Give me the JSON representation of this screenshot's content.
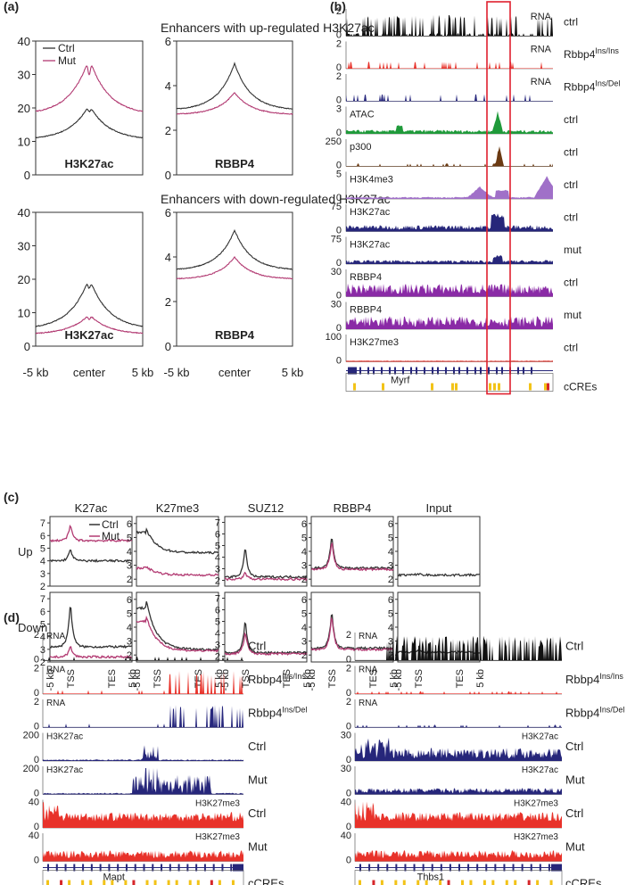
{
  "panels": {
    "a": "(a)",
    "b": "(b)",
    "c": "(c)",
    "d": "(d)"
  },
  "colors": {
    "ctrl": "#333333",
    "mut": "#b23a72",
    "rna_ctrl": "#111111",
    "rna_ins": "#e8322a",
    "rna_del": "#27277d",
    "atac": "#1f9a3a",
    "p300": "#6b3a12",
    "h3k4me3": "#a070c8",
    "h3k27ac": "#26267a",
    "rbbp4": "#8a2aa6",
    "h3k27me3": "#e8322a",
    "ccre_yellow": "#f2c318",
    "ccre_red": "#d6262a",
    "highlight": "#e0202e"
  },
  "chart_data": [
    {
      "id": "a-up",
      "type": "line",
      "title": "Enhancers with up-regulated H3K27ac",
      "legend": [
        "Ctrl",
        "Mut"
      ],
      "subplots": [
        {
          "label": "H3K27ac",
          "ylim": [
            0,
            40
          ],
          "yticks": [
            "0",
            "10",
            "20",
            "30",
            "40"
          ],
          "series": [
            {
              "name": "Ctrl",
              "baseline": 10.5,
              "peak": 21,
              "dip": 2
            },
            {
              "name": "Mut",
              "baseline": 18,
              "peak": 35,
              "dip": 5
            }
          ]
        },
        {
          "label": "RBBP4",
          "ylim": [
            0,
            6
          ],
          "yticks": [
            "0",
            "2",
            "4",
            "6"
          ],
          "series": [
            {
              "name": "Ctrl",
              "baseline": 2.9,
              "peak": 5.0
            },
            {
              "name": "Mut",
              "baseline": 2.7,
              "peak": 3.7
            }
          ]
        }
      ],
      "xticks": [
        "-5 kb",
        "center",
        "5 kb"
      ]
    },
    {
      "id": "a-down",
      "type": "line",
      "title": "Enhancers with down-regulated H3K27ac",
      "subplots": [
        {
          "label": "H3K27ac",
          "ylim": [
            0,
            40
          ],
          "yticks": [
            "0",
            "10",
            "20",
            "30",
            "40"
          ],
          "series": [
            {
              "name": "Ctrl",
              "baseline": 5,
              "peak": 20.5,
              "dip": 3
            },
            {
              "name": "Mut",
              "baseline": 3.5,
              "peak": 9.5,
              "dip": 1.5
            }
          ]
        },
        {
          "label": "RBBP4",
          "ylim": [
            0,
            6
          ],
          "yticks": [
            "0",
            "2",
            "4",
            "6"
          ],
          "series": [
            {
              "name": "Ctrl",
              "baseline": 3.4,
              "peak": 5.2
            },
            {
              "name": "Mut",
              "baseline": 3.0,
              "peak": 4.0
            }
          ]
        }
      ],
      "xticks": [
        "-5 kb",
        "center",
        "5 kb"
      ]
    },
    {
      "id": "b",
      "type": "area",
      "gene": "Myrf",
      "tracks": [
        {
          "label": "RNA",
          "max": "2",
          "sample": "ctrl",
          "color": "rna_ctrl"
        },
        {
          "label": "RNA",
          "max": "2",
          "sample": "Rbbp4",
          "sup": "Ins/Ins",
          "color": "rna_ins"
        },
        {
          "label": "RNA",
          "max": "2",
          "sample": "Rbbp4",
          "sup": "Ins/Del",
          "color": "rna_del"
        },
        {
          "label": "ATAC",
          "max": "3",
          "sample": "ctrl",
          "color": "atac"
        },
        {
          "label": "p300",
          "max": "250",
          "sample": "ctrl",
          "color": "p300"
        },
        {
          "label": "H3K4me3",
          "max": "5",
          "sample": "ctrl",
          "color": "h3k4me3"
        },
        {
          "label": "H3K27ac",
          "max": "75",
          "sample": "ctrl",
          "color": "h3k27ac"
        },
        {
          "label": "H3K27ac",
          "max": "75",
          "sample": "mut",
          "color": "h3k27ac"
        },
        {
          "label": "RBBP4",
          "max": "30",
          "sample": "ctrl",
          "color": "rbbp4"
        },
        {
          "label": "RBBP4",
          "max": "30",
          "sample": "mut",
          "color": "rbbp4"
        },
        {
          "label": "H3K27me3",
          "max": "100",
          "sample": "ctrl",
          "color": "h3k27me3"
        }
      ],
      "min": "0",
      "ccre_label": "cCREs"
    },
    {
      "id": "c",
      "type": "line",
      "legend": [
        "Ctrl",
        "Mut"
      ],
      "columns": [
        "K27ac",
        "K27me3",
        "SUZ12",
        "RBBP4",
        "Input"
      ],
      "rows": [
        "Up",
        "Down"
      ],
      "xticks": [
        "-5 kb",
        "TSS",
        "TES",
        "5 kb"
      ],
      "yticks": [
        [
          "2",
          "3",
          "4",
          "5",
          "6",
          "7"
        ],
        [
          "2",
          "3",
          "4",
          "5",
          "6"
        ],
        [
          "2",
          "3",
          "4",
          "5",
          "6",
          "7"
        ],
        [
          "2",
          "3",
          "4",
          "5",
          "6"
        ],
        [
          "2",
          "3",
          "4",
          "5",
          "6"
        ]
      ],
      "series_summary": {
        "Up": {
          "K27ac": {
            "Ctrl": {
              "base": 4.0,
              "peak": 5.0
            },
            "Mut": {
              "base": 5.6,
              "peak": 6.9
            }
          },
          "K27me3": {
            "Ctrl": {
              "base": 3.9,
              "peak": 5.6
            },
            "Mut": {
              "base": 2.3,
              "peak": 2.9
            }
          },
          "SUZ12": {
            "Ctrl": {
              "base": 2.3,
              "peak": 5.0
            },
            "Mut": {
              "base": 2.1,
              "peak": 2.7
            }
          },
          "RBBP4": {
            "Ctrl": {
              "base": 2.8,
              "peak": 5.2
            },
            "Mut": {
              "base": 2.7,
              "peak": 4.9
            }
          },
          "Input": {
            "Ctrl": {
              "base": 2.3,
              "peak": 2.4
            }
          }
        },
        "Down": {
          "K27ac": {
            "Ctrl": {
              "base": 3.2,
              "peak": 6.9
            },
            "Mut": {
              "base": 2.4,
              "peak": 3.3
            }
          },
          "K27me3": {
            "Ctrl": {
              "base": 2.4,
              "peak": 5.9
            },
            "Mut": {
              "base": 2.3,
              "peak": 4.8
            }
          },
          "SUZ12": {
            "Ctrl": {
              "base": 2.3,
              "peak": 5.3
            },
            "Mut": {
              "base": 2.2,
              "peak": 4.2
            }
          },
          "RBBP4": {
            "Ctrl": {
              "base": 2.5,
              "peak": 5.3
            },
            "Mut": {
              "base": 2.4,
              "peak": 5.0
            }
          },
          "Input": {
            "Ctrl": {
              "base": 2.2,
              "peak": 2.3
            }
          }
        }
      }
    },
    {
      "id": "d-left",
      "type": "area",
      "gene": "Mapt",
      "tracks": [
        {
          "label": "RNA",
          "max": "2",
          "sample": "Ctrl"
        },
        {
          "label": "RNA",
          "max": "2",
          "sample": "Rbbp4",
          "sup": "Ins/Ins"
        },
        {
          "label": "RNA",
          "max": "2",
          "sample": "Rbbp4",
          "sup": "Ins/Del"
        },
        {
          "label": "H3K27ac",
          "max": "200",
          "sample": "Ctrl"
        },
        {
          "label": "H3K27ac",
          "max": "200",
          "sample": "Mut"
        },
        {
          "label": "H3K27me3",
          "max": "40",
          "sample": "Ctrl"
        },
        {
          "label": "H3K27me3",
          "max": "40",
          "sample": "Mut"
        }
      ],
      "ccre_label": "cCREs"
    },
    {
      "id": "d-right",
      "type": "area",
      "gene": "Thbs1",
      "tracks": [
        {
          "label": "RNA",
          "max": "2",
          "sample": "Ctrl"
        },
        {
          "label": "RNA",
          "max": "2",
          "sample": "Rbbp4",
          "sup": "Ins/Ins"
        },
        {
          "label": "RNA",
          "max": "2",
          "sample": "Rbbp4",
          "sup": "Ins/Del"
        },
        {
          "label": "H3K27ac",
          "max": "30",
          "sample": "Ctrl"
        },
        {
          "label": "H3K27ac",
          "max": "30",
          "sample": "Mut"
        },
        {
          "label": "H3K27me3",
          "max": "40",
          "sample": "Ctrl"
        },
        {
          "label": "H3K27me3",
          "max": "40",
          "sample": "Mut"
        }
      ],
      "ccre_label": "cCREs"
    }
  ]
}
